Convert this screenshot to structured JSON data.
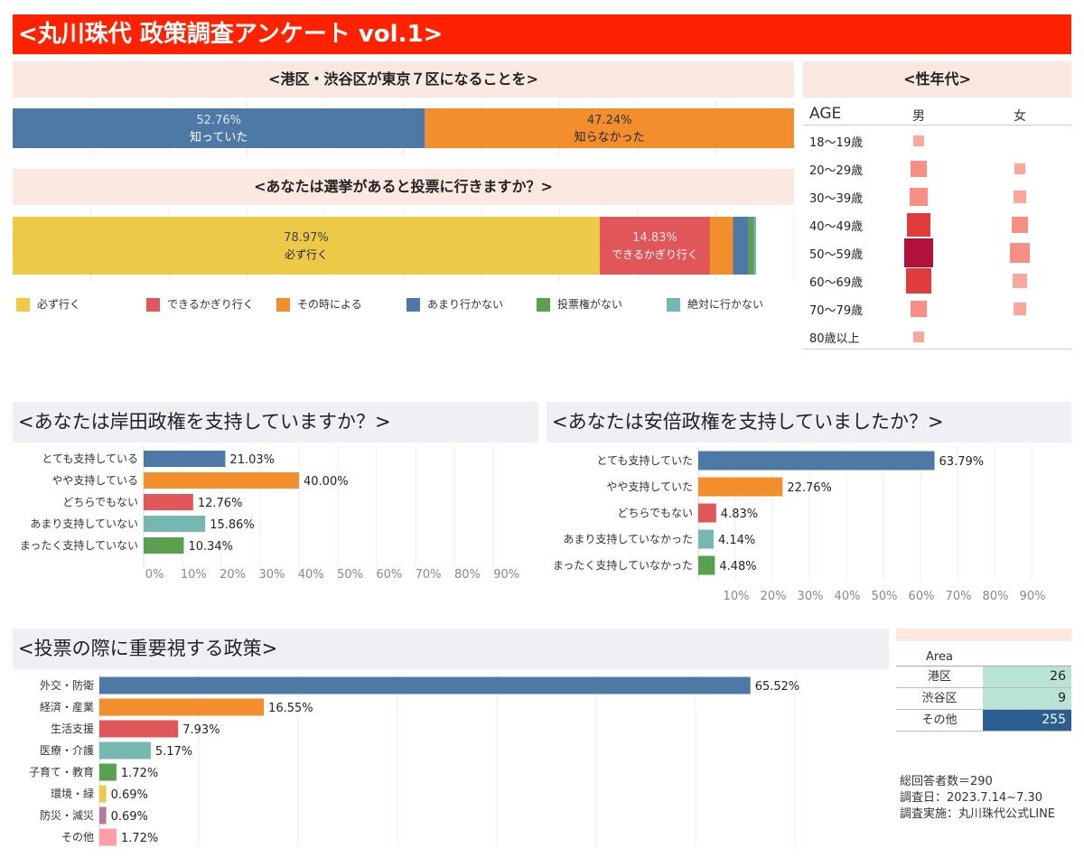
{
  "title": "<丸川珠代 政策調査アンケート vol.1>",
  "q1": {
    "title": "<港区・渋谷区が東京７区になることを>",
    "segments": [
      {
        "pct": "52.76%",
        "label": "知っていた",
        "value": 52.76,
        "color": "#4e79a7"
      },
      {
        "pct": "47.24%",
        "label": "知らなかった",
        "value": 47.24,
        "color": "#f28e2b"
      }
    ]
  },
  "q2": {
    "title": "<あなたは選挙があると投票に行きますか？>",
    "segments": [
      {
        "pct": "78.97%",
        "label": "必ず行く",
        "value": 78.97,
        "color": "#edc948"
      },
      {
        "pct": "14.83%",
        "label": "できるかぎり行く",
        "value": 14.83,
        "color": "#e15759"
      },
      {
        "pct": "",
        "label": "",
        "value": 3.1,
        "color": "#f28e2b"
      },
      {
        "pct": "",
        "label": "",
        "value": 2.1,
        "color": "#4e79a7"
      },
      {
        "pct": "",
        "label": "",
        "value": 0.7,
        "color": "#59a14f"
      },
      {
        "pct": "",
        "label": "",
        "value": 0.3,
        "color": "#76b7b2"
      }
    ],
    "legend": [
      {
        "label": "必ず行く",
        "color": "#edc948"
      },
      {
        "label": "できるかぎり行く",
        "color": "#e15759"
      },
      {
        "label": "その時による",
        "color": "#f28e2b"
      },
      {
        "label": "あまり行かない",
        "color": "#4e79a7"
      },
      {
        "label": "投票権がない",
        "color": "#59a14f"
      },
      {
        "label": "絶対に行かない",
        "color": "#76b7b2"
      }
    ]
  },
  "age": {
    "title": "<性年代>",
    "col_age": "AGE",
    "col_male": "男",
    "col_female": "女",
    "rows": [
      {
        "label": "18〜19歳",
        "male": 1,
        "female": 0
      },
      {
        "label": "20〜29歳",
        "male": 4,
        "female": 1
      },
      {
        "label": "30〜39歳",
        "male": 5,
        "female": 2
      },
      {
        "label": "40〜49歳",
        "male": 10,
        "female": 4
      },
      {
        "label": "50〜59歳",
        "male": 16,
        "female": 6
      },
      {
        "label": "60〜69歳",
        "male": 12,
        "female": 3
      },
      {
        "label": "70〜79歳",
        "male": 4,
        "female": 2
      },
      {
        "label": "80歳以上",
        "male": 1,
        "female": 0
      }
    ]
  },
  "q3": {
    "title": "<あなたは岸田政権を支持していますか？>",
    "ticks": [
      "0%",
      "10%",
      "20%",
      "30%",
      "40%",
      "50%",
      "60%",
      "70%",
      "80%",
      "90%"
    ]
  },
  "q4": {
    "title": "<あなたは安倍政権を支持していましたか？>",
    "ticks": [
      "10%",
      "20%",
      "30%",
      "40%",
      "50%",
      "60%",
      "70%",
      "80%",
      "90%"
    ]
  },
  "q5": {
    "title": "<投票の際に重要視する政策>"
  },
  "area": {
    "header": "Area",
    "rows": [
      {
        "label": "港区",
        "value": "26"
      },
      {
        "label": "渋谷区",
        "value": "9"
      },
      {
        "label": "その他",
        "value": "255"
      }
    ]
  },
  "footer": {
    "total": "総回答者数＝290",
    "date": "調査日：2023.7.14~7.30",
    "by": "調査実施：丸川珠代公式LINE"
  },
  "chart_data": [
    {
      "type": "bar",
      "title": "<港区・渋谷区が東京７区になることを>",
      "categories": [
        "知っていた",
        "知らなかった"
      ],
      "values": [
        52.76,
        47.24
      ],
      "xlim": [
        0,
        100
      ]
    },
    {
      "type": "bar",
      "title": "<あなたは選挙があると投票に行きますか？>",
      "categories": [
        "必ず行く",
        "できるかぎり行く",
        "その時による",
        "あまり行かない",
        "投票権がない",
        "絶対に行かない"
      ],
      "values": [
        78.97,
        14.83,
        3.1,
        2.1,
        0.7,
        0.3
      ],
      "legend": "bottom"
    },
    {
      "type": "heatmap",
      "title": "<性年代>",
      "rows": [
        "18〜19歳",
        "20〜29歳",
        "30〜39歳",
        "40〜49歳",
        "50〜59歳",
        "60〜69歳",
        "70〜79歳",
        "80歳以上"
      ],
      "columns": [
        "男",
        "女"
      ],
      "values": [
        [
          1,
          0
        ],
        [
          4,
          1
        ],
        [
          5,
          2
        ],
        [
          10,
          4
        ],
        [
          16,
          6
        ],
        [
          12,
          3
        ],
        [
          4,
          2
        ],
        [
          1,
          0
        ]
      ]
    },
    {
      "type": "bar",
      "title": "<あなたは岸田政権を支持していますか？>",
      "categories": [
        "とても支持している",
        "やや支持している",
        "どちらでもない",
        "あまり支持していない",
        "まったく支持していない"
      ],
      "values": [
        21.03,
        40.0,
        12.76,
        15.86,
        10.34
      ],
      "labels": [
        "21.03%",
        "40.00%",
        "12.76%",
        "15.86%",
        "10.34%"
      ],
      "colors": [
        "#4e79a7",
        "#f28e2b",
        "#e15759",
        "#76b7b2",
        "#59a14f"
      ],
      "xlim": [
        0,
        100
      ]
    },
    {
      "type": "bar",
      "title": "<あなたは安倍政権を支持していましたか？>",
      "categories": [
        "とても支持していた",
        "やや支持していた",
        "どちらでもない",
        "あまり支持していなかった",
        "まったく支持していなかった"
      ],
      "values": [
        63.79,
        22.76,
        4.83,
        4.14,
        4.48
      ],
      "labels": [
        "63.79%",
        "22.76%",
        "4.83%",
        "4.14%",
        "4.48%"
      ],
      "colors": [
        "#4e79a7",
        "#f28e2b",
        "#e15759",
        "#76b7b2",
        "#59a14f"
      ],
      "xlim": [
        0,
        100
      ]
    },
    {
      "type": "bar",
      "title": "<投票の際に重要視する政策>",
      "categories": [
        "外交・防衛",
        "経済・産業",
        "生活支援",
        "医療・介護",
        "子育て・教育",
        "環境・緑",
        "防災・減災",
        "その他"
      ],
      "values": [
        65.52,
        16.55,
        7.93,
        5.17,
        1.72,
        0.69,
        0.69,
        1.72
      ],
      "labels": [
        "65.52%",
        "16.55%",
        "7.93%",
        "5.17%",
        "1.72%",
        "0.69%",
        "0.69%",
        "1.72%"
      ],
      "colors": [
        "#4e79a7",
        "#f28e2b",
        "#e15759",
        "#76b7b2",
        "#59a14f",
        "#edc948",
        "#b07aa1",
        "#ff9da7"
      ],
      "xlim": [
        0,
        80
      ]
    }
  ]
}
